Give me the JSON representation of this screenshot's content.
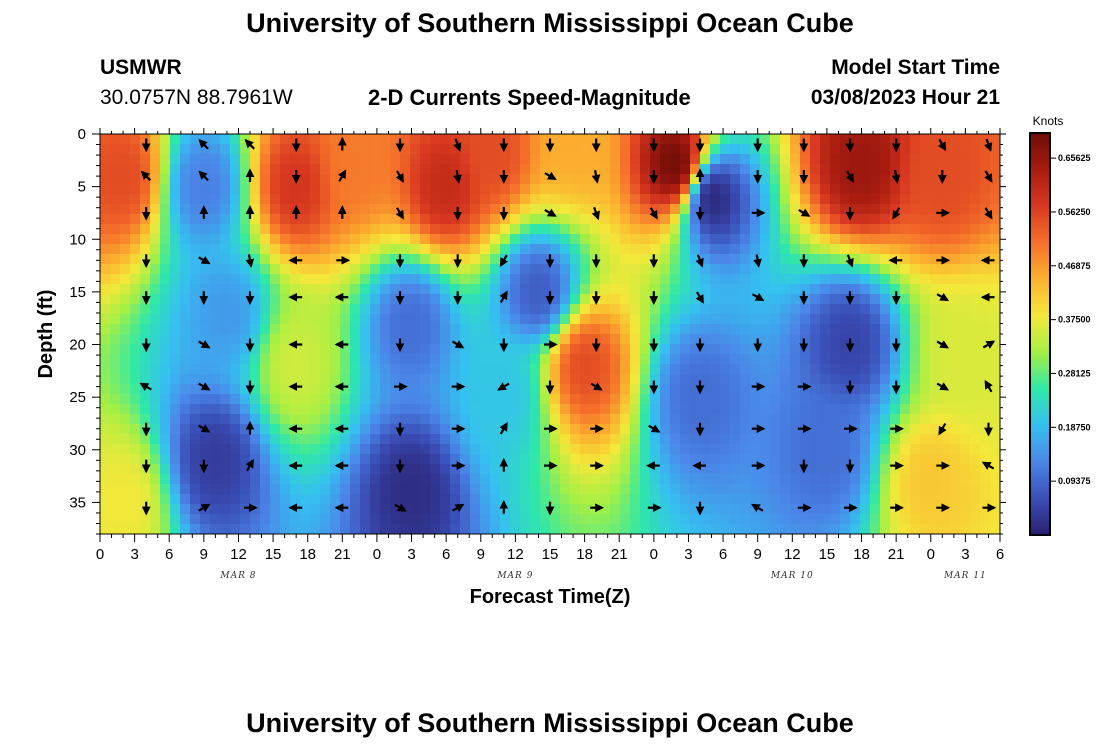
{
  "title": "University of Southern Mississippi Ocean Cube",
  "station": {
    "id": "USMWR",
    "coords": "30.0757N  88.7961W"
  },
  "model": {
    "label": "Model Start Time",
    "start": "03/08/2023 Hour 21"
  },
  "colorbar": {
    "units": "Knots",
    "colors": [
      "#2a1e6e",
      "#3a4fb8",
      "#4b86e8",
      "#35c0f0",
      "#2ee8a8",
      "#a6ef44",
      "#f4e83a",
      "#fbb22f",
      "#f5702a",
      "#d83820",
      "#a81c10",
      "#6e0c08"
    ]
  },
  "chart_data": {
    "type": "heatmap",
    "title": "2-D Currents Speed-Magnitude",
    "xlabel": "Forecast Time(Z)",
    "ylabel": "Depth (ft)",
    "x_ticks": [
      "0",
      "3",
      "6",
      "9",
      "12",
      "15",
      "18",
      "21",
      "0",
      "3",
      "6",
      "9",
      "12",
      "15",
      "18",
      "21",
      "0",
      "3",
      "6",
      "9",
      "12",
      "15",
      "18",
      "21",
      "0",
      "3",
      "6"
    ],
    "x_range_hours": [
      0,
      78
    ],
    "date_labels": [
      {
        "text": "MAR 8",
        "hour": 12
      },
      {
        "text": "MAR 9",
        "hour": 36
      },
      {
        "text": "MAR 10",
        "hour": 60
      },
      {
        "text": "MAR 11",
        "hour": 75
      }
    ],
    "y_ticks": [
      "0",
      "5",
      "10",
      "15",
      "20",
      "25",
      "30",
      "35"
    ],
    "ylim": [
      0,
      38
    ],
    "value_range_knots": [
      0.0,
      0.7
    ],
    "colorbar_ticks": [
      "0.09375",
      "0.18750",
      "0.28125",
      "0.37500",
      "0.46875",
      "0.56250",
      "0.65625"
    ],
    "speed_features": [
      {
        "hour": 2,
        "depth": 4,
        "speed": 0.55
      },
      {
        "hour": 2,
        "depth": 35,
        "speed": 0.38
      },
      {
        "hour": 9,
        "depth": 5,
        "speed": 0.12
      },
      {
        "hour": 10,
        "depth": 31,
        "speed": 0.04
      },
      {
        "hour": 11,
        "depth": 17,
        "speed": 0.15
      },
      {
        "hour": 17,
        "depth": 5,
        "speed": 0.58
      },
      {
        "hour": 17,
        "depth": 22,
        "speed": 0.35
      },
      {
        "hour": 22,
        "depth": 3,
        "speed": 0.5
      },
      {
        "hour": 27,
        "depth": 34,
        "speed": 0.02
      },
      {
        "hour": 27,
        "depth": 18,
        "speed": 0.1
      },
      {
        "hour": 30,
        "depth": 5,
        "speed": 0.6
      },
      {
        "hour": 34,
        "depth": 2,
        "speed": 0.55
      },
      {
        "hour": 35,
        "depth": 25,
        "speed": 0.2
      },
      {
        "hour": 38,
        "depth": 15,
        "speed": 0.08
      },
      {
        "hour": 42,
        "depth": 22,
        "speed": 0.55
      },
      {
        "hour": 41,
        "depth": 1,
        "speed": 0.45
      },
      {
        "hour": 50,
        "depth": 3,
        "speed": 0.7
      },
      {
        "hour": 53,
        "depth": 6,
        "speed": 0.01
      },
      {
        "hour": 52,
        "depth": 25,
        "speed": 0.1
      },
      {
        "hour": 66,
        "depth": 3,
        "speed": 0.65
      },
      {
        "hour": 73,
        "depth": 4,
        "speed": 0.55
      },
      {
        "hour": 65,
        "depth": 20,
        "speed": 0.05
      },
      {
        "hour": 63,
        "depth": 30,
        "speed": 0.1
      },
      {
        "hour": 75,
        "depth": 21,
        "speed": 0.36
      },
      {
        "hour": 72,
        "depth": 33,
        "speed": 0.42
      }
    ],
    "vector_rows_depth_ft": [
      1,
      4,
      7.5,
      12,
      15.5,
      20,
      24,
      28,
      31.5,
      35.5
    ],
    "vector_columns_hour": [
      4,
      9,
      13,
      17,
      21,
      26,
      31,
      35,
      39,
      43,
      48,
      52,
      57,
      61,
      65,
      69,
      73,
      77
    ],
    "vector_directions_deg": [
      [
        180,
        315,
        315,
        180,
        0,
        180,
        160,
        180,
        180,
        180,
        180,
        180,
        180,
        180,
        180,
        180,
        150,
        160
      ],
      [
        315,
        315,
        0,
        180,
        30,
        150,
        170,
        180,
        120,
        170,
        180,
        0,
        180,
        180,
        150,
        170,
        180,
        150
      ],
      [
        180,
        0,
        0,
        0,
        0,
        150,
        180,
        180,
        120,
        160,
        150,
        180,
        90,
        120,
        180,
        210,
        90,
        150
      ],
      [
        180,
        120,
        170,
        270,
        90,
        180,
        180,
        210,
        180,
        180,
        180,
        160,
        170,
        180,
        160,
        270,
        90,
        270
      ],
      [
        180,
        180,
        180,
        270,
        270,
        180,
        180,
        30,
        180,
        180,
        180,
        150,
        120,
        180,
        180,
        180,
        120,
        270
      ],
      [
        180,
        120,
        180,
        270,
        270,
        180,
        120,
        180,
        90,
        180,
        180,
        180,
        180,
        180,
        180,
        180,
        120,
        60
      ],
      [
        300,
        120,
        180,
        270,
        270,
        90,
        90,
        240,
        180,
        120,
        180,
        180,
        90,
        90,
        180,
        180,
        120,
        330
      ],
      [
        180,
        120,
        0,
        270,
        270,
        180,
        90,
        30,
        90,
        90,
        120,
        180,
        90,
        90,
        90,
        90,
        210,
        180
      ],
      [
        180,
        180,
        30,
        270,
        270,
        180,
        90,
        0,
        90,
        90,
        270,
        270,
        90,
        180,
        180,
        90,
        90,
        300
      ],
      [
        180,
        60,
        90,
        270,
        270,
        120,
        60,
        0,
        180,
        90,
        90,
        180,
        300,
        90,
        90,
        90,
        90,
        90
      ]
    ]
  }
}
